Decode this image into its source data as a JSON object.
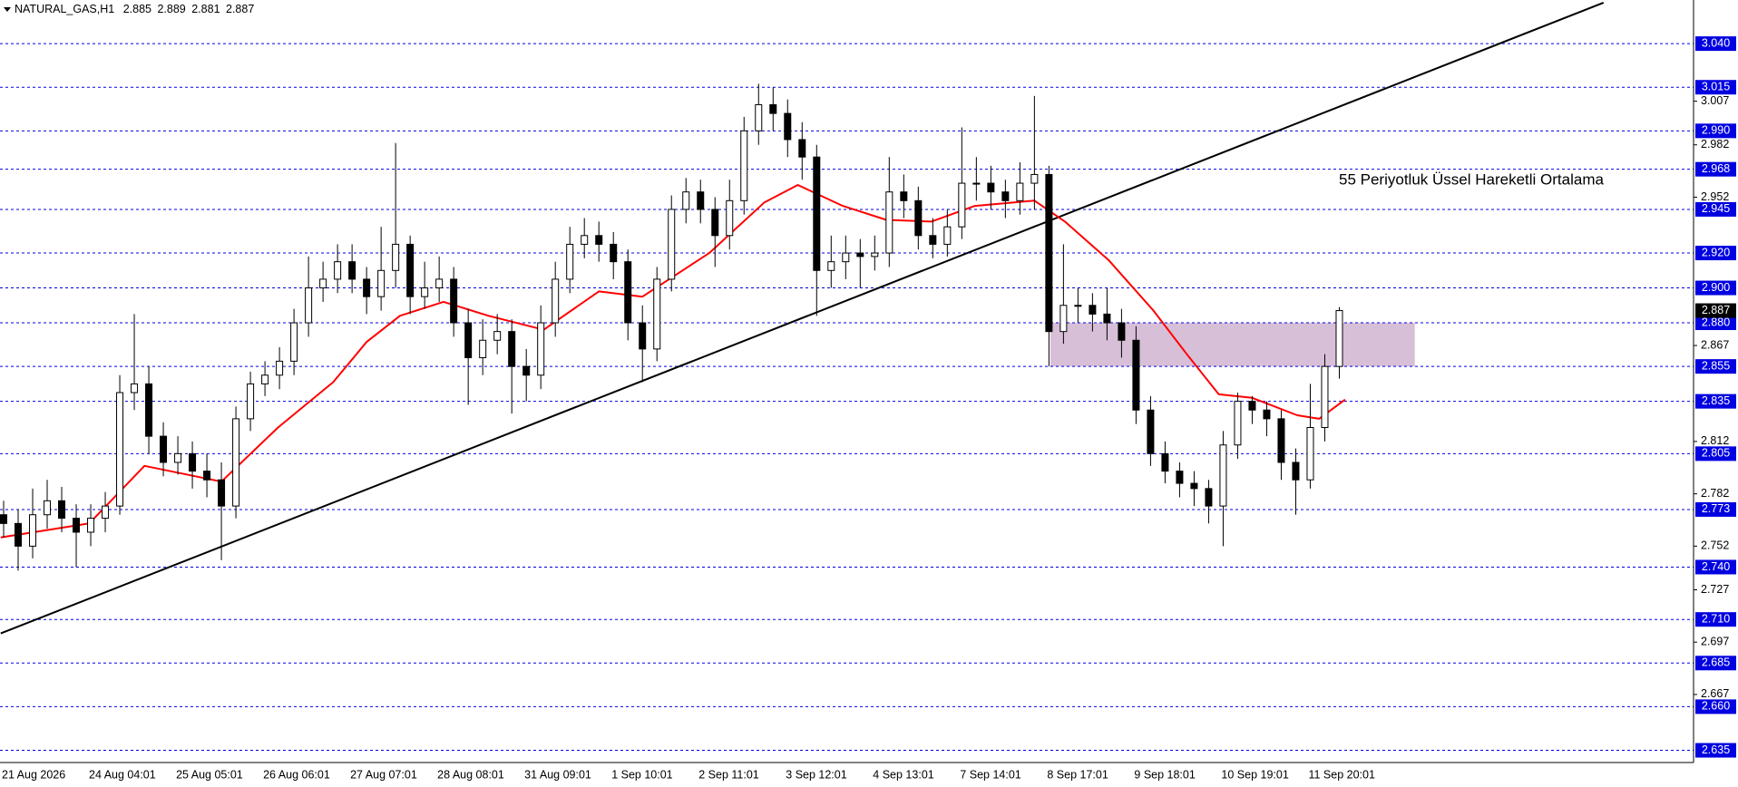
{
  "chart_data": {
    "type": "candlestick",
    "symbol": "NATURAL_GAS,H1",
    "ohlc_header": [
      2.885,
      2.889,
      2.881,
      2.887
    ],
    "categories": [
      "21 Aug 2026",
      null,
      null,
      null,
      null,
      null,
      "24 Aug 04:01",
      null,
      null,
      null,
      null,
      null,
      "25 Aug 05:01",
      null,
      null,
      null,
      null,
      null,
      "26 Aug 06:01",
      null,
      null,
      null,
      null,
      null,
      "27 Aug 07:01",
      null,
      null,
      null,
      null,
      null,
      "28 Aug 08:01",
      null,
      null,
      null,
      null,
      null,
      "31 Aug 09:01",
      null,
      null,
      null,
      null,
      null,
      "1 Sep 10:01",
      null,
      null,
      null,
      null,
      null,
      "2 Sep 11:01",
      null,
      null,
      null,
      null,
      null,
      "3 Sep 12:01",
      null,
      null,
      null,
      null,
      null,
      "4 Sep 13:01",
      null,
      null,
      null,
      null,
      null,
      "7 Sep 14:01",
      null,
      null,
      null,
      null,
      null,
      "8 Sep 17:01",
      null,
      null,
      null,
      null,
      null,
      "9 Sep 18:01",
      null,
      null,
      null,
      null,
      null,
      "10 Sep 19:01",
      null,
      null,
      null,
      null,
      null,
      "11 Sep 20:01",
      null,
      null
    ],
    "candles": {
      "open": [
        2.77,
        2.765,
        2.752,
        2.77,
        2.778,
        2.768,
        2.76,
        2.768,
        2.775,
        2.84,
        2.845,
        2.815,
        2.8,
        2.805,
        2.795,
        2.79,
        2.775,
        2.825,
        2.845,
        2.85,
        2.858,
        2.88,
        2.9,
        2.905,
        2.915,
        2.905,
        2.895,
        2.91,
        2.925,
        2.895,
        2.9,
        2.905,
        2.88,
        2.86,
        2.87,
        2.875,
        2.855,
        2.85,
        2.88,
        2.905,
        2.925,
        2.93,
        2.925,
        2.915,
        2.88,
        2.865,
        2.905,
        2.945,
        2.955,
        2.945,
        2.93,
        2.95,
        2.99,
        3.005,
        3.0,
        2.985,
        2.975,
        2.91,
        2.915,
        2.92,
        2.918,
        2.92,
        2.955,
        2.95,
        2.93,
        2.925,
        2.935,
        2.96,
        2.96,
        2.955,
        2.95,
        2.96,
        2.965,
        2.875,
        2.89,
        2.89,
        2.885,
        2.88,
        2.87,
        2.83,
        2.805,
        2.795,
        2.788,
        2.785,
        2.775,
        2.81,
        2.835,
        2.83,
        2.825,
        2.8,
        2.79,
        2.82,
        2.855
      ],
      "high": [
        2.778,
        2.773,
        2.785,
        2.79,
        2.786,
        2.776,
        2.776,
        2.783,
        2.85,
        2.885,
        2.855,
        2.823,
        2.815,
        2.812,
        2.805,
        2.8,
        2.832,
        2.852,
        2.858,
        2.866,
        2.888,
        2.918,
        2.915,
        2.925,
        2.925,
        2.912,
        2.935,
        2.983,
        2.93,
        2.915,
        2.918,
        2.912,
        2.888,
        2.882,
        2.885,
        2.882,
        2.865,
        2.89,
        2.915,
        2.935,
        2.94,
        2.938,
        2.932,
        2.922,
        2.89,
        2.912,
        2.953,
        2.963,
        2.962,
        2.952,
        2.962,
        2.998,
        3.017,
        3.015,
        3.008,
        2.995,
        2.982,
        2.93,
        2.93,
        2.928,
        2.93,
        2.975,
        2.965,
        2.958,
        2.94,
        2.945,
        2.992,
        2.975,
        2.97,
        2.962,
        2.972,
        3.01,
        2.97,
        2.925,
        2.9,
        2.897,
        2.9,
        2.888,
        2.878,
        2.838,
        2.812,
        2.8,
        2.795,
        2.79,
        2.818,
        2.84,
        2.838,
        2.835,
        2.83,
        2.808,
        2.845,
        2.862,
        2.889
      ],
      "low": [
        2.757,
        2.738,
        2.745,
        2.762,
        2.76,
        2.74,
        2.752,
        2.76,
        2.77,
        2.83,
        2.805,
        2.792,
        2.793,
        2.785,
        2.78,
        2.744,
        2.768,
        2.818,
        2.838,
        2.842,
        2.85,
        2.872,
        2.892,
        2.897,
        2.897,
        2.885,
        2.887,
        2.9,
        2.885,
        2.888,
        2.892,
        2.872,
        2.833,
        2.85,
        2.862,
        2.828,
        2.835,
        2.842,
        2.872,
        2.897,
        2.917,
        2.915,
        2.905,
        2.87,
        2.846,
        2.858,
        2.898,
        2.937,
        2.937,
        2.912,
        2.922,
        2.942,
        2.982,
        2.99,
        2.975,
        2.962,
        2.884,
        2.9,
        2.905,
        2.9,
        2.91,
        2.912,
        2.94,
        2.922,
        2.917,
        2.918,
        2.928,
        2.95,
        2.945,
        2.94,
        2.942,
        2.945,
        2.855,
        2.868,
        2.88,
        2.875,
        2.87,
        2.86,
        2.822,
        2.798,
        2.788,
        2.78,
        2.775,
        2.765,
        2.752,
        2.802,
        2.822,
        2.815,
        2.79,
        2.77,
        2.785,
        2.812,
        2.848
      ],
      "close": [
        2.765,
        2.752,
        2.77,
        2.778,
        2.768,
        2.76,
        2.768,
        2.775,
        2.84,
        2.845,
        2.815,
        2.8,
        2.805,
        2.795,
        2.79,
        2.775,
        2.825,
        2.845,
        2.85,
        2.858,
        2.88,
        2.9,
        2.905,
        2.915,
        2.905,
        2.895,
        2.91,
        2.925,
        2.895,
        2.9,
        2.905,
        2.88,
        2.86,
        2.87,
        2.875,
        2.855,
        2.85,
        2.88,
        2.905,
        2.925,
        2.93,
        2.925,
        2.915,
        2.88,
        2.865,
        2.905,
        2.945,
        2.955,
        2.945,
        2.93,
        2.95,
        2.99,
        3.005,
        3.0,
        2.985,
        2.975,
        2.91,
        2.915,
        2.92,
        2.918,
        2.92,
        2.955,
        2.95,
        2.93,
        2.925,
        2.935,
        2.96,
        2.96,
        2.955,
        2.95,
        2.96,
        2.965,
        2.875,
        2.89,
        2.89,
        2.885,
        2.88,
        2.87,
        2.83,
        2.805,
        2.795,
        2.788,
        2.785,
        2.775,
        2.81,
        2.835,
        2.83,
        2.825,
        2.8,
        2.79,
        2.82,
        2.855,
        2.887
      ]
    },
    "up_color": "#ffffff",
    "down_color": "#000000",
    "wick_color": "#000000",
    "xlim": [
      -0.25,
      116.4
    ],
    "ylim": [
      2.628,
      3.065
    ],
    "yticks": [
      3.007,
      2.982,
      2.952,
      2.867,
      2.812,
      2.782,
      2.752,
      2.727,
      2.697,
      2.667
    ],
    "levels": [
      {
        "value": 3.04,
        "label": "3.040"
      },
      3.015,
      {
        "value": 2.99,
        "label": "2.990"
      },
      2.968,
      2.945,
      {
        "value": 2.92,
        "label": "2.920"
      },
      {
        "value": 2.9,
        "label": "2.900"
      },
      {
        "value": 2.88,
        "label": "2.880"
      },
      2.855,
      2.835,
      2.805,
      2.773,
      {
        "value": 2.74,
        "label": "2.740"
      },
      {
        "value": 2.71,
        "label": "2.710"
      },
      2.685,
      {
        "value": 2.66,
        "label": "2.660"
      },
      2.635
    ],
    "level_color": "#0000e0",
    "last_price": 2.887,
    "ema": {
      "color": "#ff0000",
      "x": [
        -0.2,
        5.9,
        9.7,
        15.0,
        18.9,
        22.7,
        25.0,
        27.3,
        30.3,
        33.4,
        37.2,
        41.0,
        44.0,
        48.6,
        52.4,
        54.7,
        57.8,
        60.8,
        63.9,
        66.9,
        71.0,
        73.1,
        76.1,
        79.2,
        81.5,
        83.7,
        86.0,
        89.1,
        90.6,
        92.4
      ],
      "values": [
        2.757,
        2.765,
        2.798,
        2.789,
        2.82,
        2.846,
        2.869,
        2.884,
        2.892,
        2.884,
        2.876,
        2.898,
        2.895,
        2.92,
        2.949,
        2.959,
        2.947,
        2.939,
        2.938,
        2.947,
        2.95,
        2.938,
        2.916,
        2.887,
        2.862,
        2.839,
        2.837,
        2.827,
        2.825,
        2.836
      ]
    },
    "trendline": {
      "color": "#000000",
      "x": [
        -0.2,
        110.2
      ],
      "values": [
        2.702,
        3.0635
      ]
    },
    "zone": {
      "color": "#d8bfd8",
      "x": [
        72.1,
        97.2
      ],
      "values": [
        2.855,
        2.88
      ]
    },
    "annotation": {
      "text": "55 Periyotluk Üssel Hareketli Ortalama",
      "color": "#ff0000"
    }
  }
}
